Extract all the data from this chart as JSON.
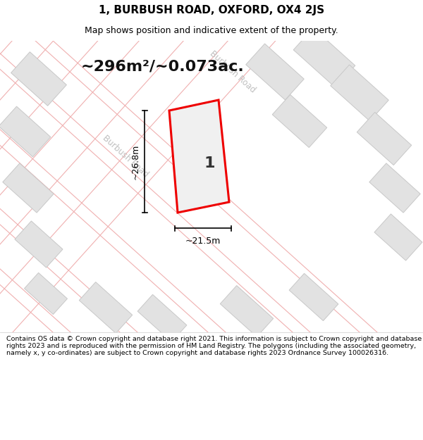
{
  "title_line1": "1, BURBUSH ROAD, OXFORD, OX4 2JS",
  "title_line2": "Map shows position and indicative extent of the property.",
  "area_text": "~296m²/~0.073ac.",
  "property_number": "1",
  "dim_width": "~21.5m",
  "dim_height": "~26.8m",
  "road_label_left": "Burbush Road",
  "road_label_right": "Burbush Road",
  "footer_text": "Contains OS data © Crown copyright and database right 2021. This information is subject to Crown copyright and database rights 2023 and is reproduced with the permission of HM Land Registry. The polygons (including the associated geometry, namely x, y co-ordinates) are subject to Crown copyright and database rights 2023 Ordnance Survey 100026316.",
  "map_bg": "#f7f7f7",
  "road_line_color": "#f0b0b0",
  "building_fill": "#e2e2e2",
  "building_edge": "#c8c8c8",
  "plot_fill": "#f0f0f0",
  "plot_edge": "#ee0000",
  "road_label_color": "#c0c0c0",
  "title_fontsize": 11,
  "subtitle_fontsize": 9,
  "area_fontsize": 16,
  "dim_fontsize": 9,
  "property_num_fontsize": 16,
  "footer_fontsize": 6.8
}
